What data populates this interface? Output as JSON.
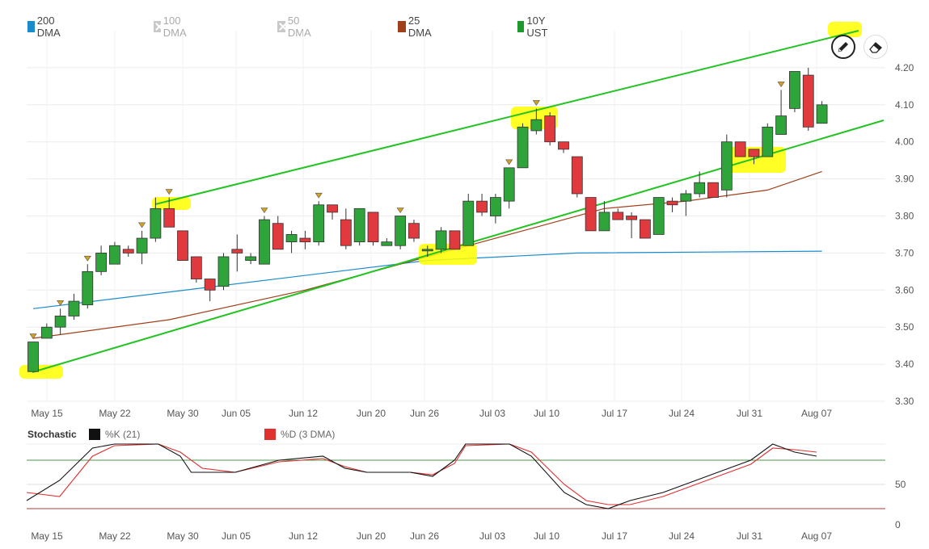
{
  "legend": [
    {
      "label": "200 DMA",
      "color": "#1a8ccc",
      "enabled": true
    },
    {
      "label": "100 DMA",
      "color": "#c8c8c8",
      "enabled": false
    },
    {
      "label": "50 DMA",
      "color": "#c8c8c8",
      "enabled": false
    },
    {
      "label": "25 DMA",
      "color": "#a0401a",
      "enabled": true
    },
    {
      "label": "10Y UST",
      "color": "#1d9a2b",
      "enabled": true
    }
  ],
  "tools": {
    "pencil": "pencil-icon",
    "eraser": "eraser-icon"
  },
  "stochastic": {
    "title": "Stochastic",
    "k_label": "%K (21)",
    "d_label": "%D (3 DMA)",
    "k_color": "#111111",
    "d_color": "#e03030",
    "levels": [
      80,
      20
    ],
    "ylim": [
      0,
      100
    ],
    "y_ticks": [
      "50",
      "0"
    ]
  },
  "chart_data": {
    "type": "candlestick",
    "x_ticks": [
      "May 15",
      "May 22",
      "May 30",
      "Jun 05",
      "Jun 12",
      "Jun 20",
      "Jun 26",
      "Jul 03",
      "Jul 10",
      "Jul 17",
      "Jul 24",
      "Jul 31",
      "Aug 07"
    ],
    "y_ticks": [
      "4.20",
      "4.10",
      "4.00",
      "3.90",
      "3.80",
      "3.70",
      "3.60",
      "3.50",
      "3.40",
      "3.30"
    ],
    "ylim": [
      3.3,
      4.3
    ],
    "candles": [
      {
        "o": 3.38,
        "h": 3.46,
        "l": 3.38,
        "c": 3.46
      },
      {
        "o": 3.47,
        "h": 3.51,
        "l": 3.47,
        "c": 3.5
      },
      {
        "o": 3.5,
        "h": 3.55,
        "l": 3.48,
        "c": 3.53
      },
      {
        "o": 3.53,
        "h": 3.59,
        "l": 3.52,
        "c": 3.57
      },
      {
        "o": 3.56,
        "h": 3.67,
        "l": 3.55,
        "c": 3.65
      },
      {
        "o": 3.65,
        "h": 3.72,
        "l": 3.64,
        "c": 3.7
      },
      {
        "o": 3.67,
        "h": 3.73,
        "l": 3.67,
        "c": 3.72
      },
      {
        "o": 3.71,
        "h": 3.72,
        "l": 3.69,
        "c": 3.7
      },
      {
        "o": 3.7,
        "h": 3.76,
        "l": 3.67,
        "c": 3.74
      },
      {
        "o": 3.74,
        "h": 3.85,
        "l": 3.73,
        "c": 3.82
      },
      {
        "o": 3.82,
        "h": 3.85,
        "l": 3.77,
        "c": 3.77
      },
      {
        "o": 3.76,
        "h": 3.76,
        "l": 3.68,
        "c": 3.68
      },
      {
        "o": 3.69,
        "h": 3.69,
        "l": 3.62,
        "c": 3.63
      },
      {
        "o": 3.63,
        "h": 3.63,
        "l": 3.57,
        "c": 3.6
      },
      {
        "o": 3.61,
        "h": 3.7,
        "l": 3.6,
        "c": 3.69
      },
      {
        "o": 3.71,
        "h": 3.75,
        "l": 3.65,
        "c": 3.7
      },
      {
        "o": 3.68,
        "h": 3.7,
        "l": 3.67,
        "c": 3.69
      },
      {
        "o": 3.67,
        "h": 3.8,
        "l": 3.67,
        "c": 3.79
      },
      {
        "o": 3.78,
        "h": 3.8,
        "l": 3.71,
        "c": 3.71
      },
      {
        "o": 3.73,
        "h": 3.76,
        "l": 3.7,
        "c": 3.75
      },
      {
        "o": 3.74,
        "h": 3.76,
        "l": 3.71,
        "c": 3.73
      },
      {
        "o": 3.73,
        "h": 3.84,
        "l": 3.72,
        "c": 3.83
      },
      {
        "o": 3.83,
        "h": 3.83,
        "l": 3.79,
        "c": 3.81
      },
      {
        "o": 3.79,
        "h": 3.82,
        "l": 3.71,
        "c": 3.72
      },
      {
        "o": 3.73,
        "h": 3.82,
        "l": 3.72,
        "c": 3.82
      },
      {
        "o": 3.81,
        "h": 3.81,
        "l": 3.72,
        "c": 3.73
      },
      {
        "o": 3.72,
        "h": 3.74,
        "l": 3.72,
        "c": 3.73
      },
      {
        "o": 3.72,
        "h": 3.8,
        "l": 3.71,
        "c": 3.8
      },
      {
        "o": 3.78,
        "h": 3.79,
        "l": 3.73,
        "c": 3.74
      },
      {
        "o": 3.71,
        "h": 3.72,
        "l": 3.69,
        "c": 3.71
      },
      {
        "o": 3.71,
        "h": 3.77,
        "l": 3.7,
        "c": 3.76
      },
      {
        "o": 3.76,
        "h": 3.76,
        "l": 3.71,
        "c": 3.71
      },
      {
        "o": 3.72,
        "h": 3.86,
        "l": 3.72,
        "c": 3.84
      },
      {
        "o": 3.84,
        "h": 3.86,
        "l": 3.8,
        "c": 3.81
      },
      {
        "o": 3.8,
        "h": 3.86,
        "l": 3.78,
        "c": 3.85
      },
      {
        "o": 3.84,
        "h": 3.93,
        "l": 3.82,
        "c": 3.93
      },
      {
        "o": 3.93,
        "h": 4.05,
        "l": 3.93,
        "c": 4.04
      },
      {
        "o": 4.03,
        "h": 4.09,
        "l": 4.02,
        "c": 4.06
      },
      {
        "o": 4.07,
        "h": 4.08,
        "l": 3.99,
        "c": 4.0
      },
      {
        "o": 4.0,
        "h": 4.0,
        "l": 3.97,
        "c": 3.98
      },
      {
        "o": 3.96,
        "h": 3.96,
        "l": 3.85,
        "c": 3.86
      },
      {
        "o": 3.85,
        "h": 3.85,
        "l": 3.76,
        "c": 3.76
      },
      {
        "o": 3.76,
        "h": 3.84,
        "l": 3.76,
        "c": 3.81
      },
      {
        "o": 3.81,
        "h": 3.82,
        "l": 3.79,
        "c": 3.79
      },
      {
        "o": 3.8,
        "h": 3.81,
        "l": 3.74,
        "c": 3.79
      },
      {
        "o": 3.79,
        "h": 3.79,
        "l": 3.74,
        "c": 3.74
      },
      {
        "o": 3.75,
        "h": 3.85,
        "l": 3.75,
        "c": 3.85
      },
      {
        "o": 3.84,
        "h": 3.85,
        "l": 3.81,
        "c": 3.83
      },
      {
        "o": 3.84,
        "h": 3.87,
        "l": 3.8,
        "c": 3.86
      },
      {
        "o": 3.86,
        "h": 3.92,
        "l": 3.85,
        "c": 3.89
      },
      {
        "o": 3.89,
        "h": 3.89,
        "l": 3.85,
        "c": 3.85
      },
      {
        "o": 3.87,
        "h": 4.02,
        "l": 3.85,
        "c": 4.0
      },
      {
        "o": 4.0,
        "h": 4.0,
        "l": 3.96,
        "c": 3.96
      },
      {
        "o": 3.98,
        "h": 3.98,
        "l": 3.94,
        "c": 3.96
      },
      {
        "o": 3.96,
        "h": 4.05,
        "l": 3.96,
        "c": 4.04
      },
      {
        "o": 4.02,
        "h": 4.14,
        "l": 4.02,
        "c": 4.07
      },
      {
        "o": 4.09,
        "h": 4.19,
        "l": 4.08,
        "c": 4.19
      },
      {
        "o": 4.18,
        "h": 4.2,
        "l": 4.03,
        "c": 4.04
      },
      {
        "o": 4.05,
        "h": 4.11,
        "l": 4.05,
        "c": 4.1
      }
    ],
    "series": [
      {
        "name": "200 DMA",
        "color": "#1a8ccc",
        "values": [
          [
            0,
            3.55
          ],
          [
            29,
            3.68
          ],
          [
            40,
            3.7
          ],
          [
            58,
            3.705
          ]
        ]
      },
      {
        "name": "25 DMA",
        "color": "#a0401a",
        "values": [
          [
            0,
            3.47
          ],
          [
            10,
            3.52
          ],
          [
            20,
            3.6
          ],
          [
            30,
            3.7
          ],
          [
            36,
            3.76
          ],
          [
            42,
            3.82
          ],
          [
            48,
            3.84
          ],
          [
            54,
            3.87
          ],
          [
            58,
            3.92
          ]
        ]
      }
    ],
    "stochastic_k": [
      [
        0,
        30
      ],
      [
        3,
        55
      ],
      [
        6,
        95
      ],
      [
        8,
        100
      ],
      [
        12,
        100
      ],
      [
        14,
        85
      ],
      [
        15,
        65
      ],
      [
        19,
        65
      ],
      [
        23,
        80
      ],
      [
        27,
        85
      ],
      [
        29,
        70
      ],
      [
        31,
        65
      ],
      [
        35,
        65
      ],
      [
        37,
        60
      ],
      [
        39,
        80
      ],
      [
        40,
        100
      ],
      [
        44,
        100
      ],
      [
        46,
        85
      ],
      [
        49,
        40
      ],
      [
        51,
        25
      ],
      [
        53,
        20
      ],
      [
        55,
        30
      ],
      [
        58,
        40
      ],
      [
        62,
        60
      ],
      [
        66,
        80
      ],
      [
        68,
        100
      ],
      [
        70,
        90
      ],
      [
        72,
        85
      ]
    ],
    "stochastic_d": [
      [
        0,
        40
      ],
      [
        3,
        35
      ],
      [
        6,
        85
      ],
      [
        8,
        98
      ],
      [
        12,
        100
      ],
      [
        14,
        90
      ],
      [
        16,
        70
      ],
      [
        19,
        65
      ],
      [
        23,
        78
      ],
      [
        27,
        82
      ],
      [
        29,
        72
      ],
      [
        31,
        65
      ],
      [
        35,
        65
      ],
      [
        37,
        62
      ],
      [
        39,
        76
      ],
      [
        40,
        98
      ],
      [
        44,
        100
      ],
      [
        46,
        90
      ],
      [
        49,
        50
      ],
      [
        51,
        30
      ],
      [
        53,
        25
      ],
      [
        55,
        25
      ],
      [
        58,
        35
      ],
      [
        62,
        55
      ],
      [
        66,
        75
      ],
      [
        68,
        95
      ],
      [
        70,
        93
      ],
      [
        72,
        90
      ]
    ]
  }
}
